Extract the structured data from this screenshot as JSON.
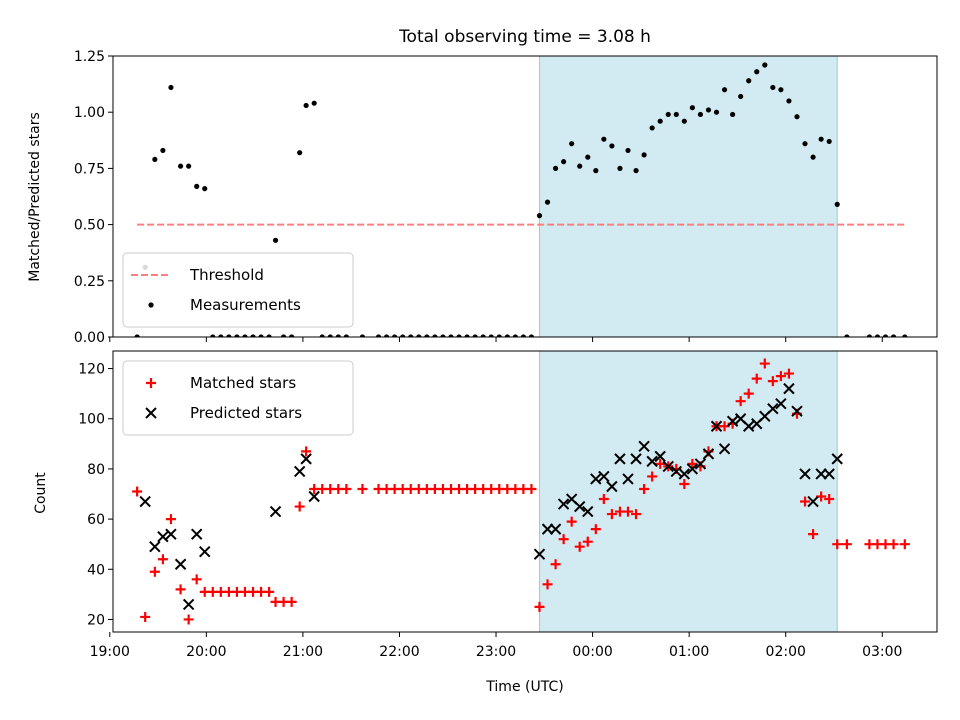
{
  "chart_data": [
    {
      "type": "scatter",
      "title": "Total observing time = 3.08 h",
      "xlabel": "",
      "ylabel": "Matched/Predicted stars",
      "xlim": [
        "19:02",
        "03:34"
      ],
      "ylim": [
        0,
        1.25
      ],
      "yticks": [
        "0.00",
        "0.25",
        "0.50",
        "0.75",
        "1.00",
        "1.25"
      ],
      "shaded_interval": [
        "23:27",
        "02:32"
      ],
      "shade_color": "#add8e6",
      "legend_position": "lower-left",
      "threshold": {
        "name": "Threshold",
        "value": 0.5,
        "x_range": [
          "19:17",
          "03:14"
        ],
        "color": "#ff7f7f",
        "style": "dashed"
      },
      "series": [
        {
          "name": "Measurements",
          "color": "#000000",
          "marker": "dot",
          "points": [
            [
              "19:17",
              0.0
            ],
            [
              "19:22",
              0.31
            ],
            [
              "19:28",
              0.79
            ],
            [
              "19:33",
              0.83
            ],
            [
              "19:38",
              1.11
            ],
            [
              "19:44",
              0.76
            ],
            [
              "19:49",
              0.76
            ],
            [
              "19:54",
              0.67
            ],
            [
              "19:59",
              0.66
            ],
            [
              "20:04",
              0.0
            ],
            [
              "20:09",
              0.0
            ],
            [
              "20:14",
              0.0
            ],
            [
              "20:19",
              0.0
            ],
            [
              "20:24",
              0.0
            ],
            [
              "20:29",
              0.0
            ],
            [
              "20:34",
              0.0
            ],
            [
              "20:39",
              0.0
            ],
            [
              "20:43",
              0.43
            ],
            [
              "20:48",
              0.0
            ],
            [
              "20:53",
              0.0
            ],
            [
              "20:58",
              0.82
            ],
            [
              "21:02",
              1.03
            ],
            [
              "21:07",
              1.04
            ],
            [
              "21:12",
              0.0
            ],
            [
              "21:17",
              0.0
            ],
            [
              "21:22",
              0.0
            ],
            [
              "21:27",
              0.0
            ],
            [
              "21:37",
              0.0
            ],
            [
              "21:47",
              0.0
            ],
            [
              "21:52",
              0.0
            ],
            [
              "21:57",
              0.0
            ],
            [
              "22:02",
              0.0
            ],
            [
              "22:07",
              0.0
            ],
            [
              "22:12",
              0.0
            ],
            [
              "22:17",
              0.0
            ],
            [
              "22:22",
              0.0
            ],
            [
              "22:27",
              0.0
            ],
            [
              "22:32",
              0.0
            ],
            [
              "22:37",
              0.0
            ],
            [
              "22:42",
              0.0
            ],
            [
              "22:47",
              0.0
            ],
            [
              "22:52",
              0.0
            ],
            [
              "22:57",
              0.0
            ],
            [
              "23:02",
              0.0
            ],
            [
              "23:07",
              0.0
            ],
            [
              "23:12",
              0.0
            ],
            [
              "23:17",
              0.0
            ],
            [
              "23:22",
              0.0
            ],
            [
              "23:27",
              0.54
            ],
            [
              "23:32",
              0.6
            ],
            [
              "23:37",
              0.75
            ],
            [
              "23:42",
              0.78
            ],
            [
              "23:47",
              0.86
            ],
            [
              "23:52",
              0.76
            ],
            [
              "23:57",
              0.8
            ],
            [
              "00:02",
              0.74
            ],
            [
              "00:07",
              0.88
            ],
            [
              "00:12",
              0.85
            ],
            [
              "00:17",
              0.75
            ],
            [
              "00:22",
              0.83
            ],
            [
              "00:27",
              0.74
            ],
            [
              "00:32",
              0.81
            ],
            [
              "00:37",
              0.93
            ],
            [
              "00:42",
              0.96
            ],
            [
              "00:47",
              0.99
            ],
            [
              "00:52",
              0.99
            ],
            [
              "00:57",
              0.96
            ],
            [
              "01:02",
              1.02
            ],
            [
              "01:07",
              0.99
            ],
            [
              "01:12",
              1.01
            ],
            [
              "01:17",
              1.0
            ],
            [
              "01:22",
              1.1
            ],
            [
              "01:27",
              0.99
            ],
            [
              "01:32",
              1.07
            ],
            [
              "01:37",
              1.14
            ],
            [
              "01:42",
              1.18
            ],
            [
              "01:47",
              1.21
            ],
            [
              "01:52",
              1.11
            ],
            [
              "01:57",
              1.1
            ],
            [
              "02:02",
              1.05
            ],
            [
              "02:07",
              0.98
            ],
            [
              "02:12",
              0.86
            ],
            [
              "02:17",
              0.8
            ],
            [
              "02:22",
              0.88
            ],
            [
              "02:27",
              0.87
            ],
            [
              "02:32",
              0.59
            ],
            [
              "02:38",
              0.0
            ],
            [
              "02:52",
              0.0
            ],
            [
              "02:57",
              0.0
            ],
            [
              "03:02",
              0.0
            ],
            [
              "03:07",
              0.0
            ],
            [
              "03:14",
              0.0
            ]
          ]
        }
      ]
    },
    {
      "type": "scatter",
      "title": "",
      "xlabel": "Time (UTC)",
      "ylabel": "Count",
      "xlim": [
        "19:02",
        "03:34"
      ],
      "ylim": [
        15,
        127
      ],
      "xticks": [
        "19:00",
        "20:00",
        "21:00",
        "22:00",
        "23:00",
        "00:00",
        "01:00",
        "02:00",
        "03:00"
      ],
      "yticks": [
        "20",
        "40",
        "60",
        "80",
        "100",
        "120"
      ],
      "shaded_interval": [
        "23:27",
        "02:32"
      ],
      "shade_color": "#add8e6",
      "legend_position": "upper-left",
      "series": [
        {
          "name": "Matched stars",
          "color": "#ff0000",
          "marker": "plus",
          "points": [
            [
              "19:17",
              71
            ],
            [
              "19:22",
              21
            ],
            [
              "19:28",
              39
            ],
            [
              "19:33",
              44
            ],
            [
              "19:38",
              60
            ],
            [
              "19:44",
              32
            ],
            [
              "19:49",
              20
            ],
            [
              "19:54",
              36
            ],
            [
              "19:59",
              31
            ],
            [
              "20:04",
              31
            ],
            [
              "20:09",
              31
            ],
            [
              "20:14",
              31
            ],
            [
              "20:19",
              31
            ],
            [
              "20:24",
              31
            ],
            [
              "20:29",
              31
            ],
            [
              "20:34",
              31
            ],
            [
              "20:39",
              31
            ],
            [
              "20:43",
              27
            ],
            [
              "20:48",
              27
            ],
            [
              "20:53",
              27
            ],
            [
              "20:58",
              65
            ],
            [
              "21:02",
              87
            ],
            [
              "21:07",
              72
            ],
            [
              "21:12",
              72
            ],
            [
              "21:17",
              72
            ],
            [
              "21:22",
              72
            ],
            [
              "21:27",
              72
            ],
            [
              "21:37",
              72
            ],
            [
              "21:47",
              72
            ],
            [
              "21:52",
              72
            ],
            [
              "21:57",
              72
            ],
            [
              "22:02",
              72
            ],
            [
              "22:07",
              72
            ],
            [
              "22:12",
              72
            ],
            [
              "22:17",
              72
            ],
            [
              "22:22",
              72
            ],
            [
              "22:27",
              72
            ],
            [
              "22:32",
              72
            ],
            [
              "22:37",
              72
            ],
            [
              "22:42",
              72
            ],
            [
              "22:47",
              72
            ],
            [
              "22:52",
              72
            ],
            [
              "22:57",
              72
            ],
            [
              "23:02",
              72
            ],
            [
              "23:07",
              72
            ],
            [
              "23:12",
              72
            ],
            [
              "23:17",
              72
            ],
            [
              "23:22",
              72
            ],
            [
              "23:27",
              25
            ],
            [
              "23:32",
              34
            ],
            [
              "23:37",
              42
            ],
            [
              "23:42",
              52
            ],
            [
              "23:47",
              59
            ],
            [
              "23:52",
              49
            ],
            [
              "23:57",
              51
            ],
            [
              "00:02",
              56
            ],
            [
              "00:07",
              68
            ],
            [
              "00:12",
              62
            ],
            [
              "00:17",
              63
            ],
            [
              "00:22",
              63
            ],
            [
              "00:27",
              62
            ],
            [
              "00:32",
              72
            ],
            [
              "00:37",
              77
            ],
            [
              "00:42",
              82
            ],
            [
              "00:47",
              81
            ],
            [
              "00:52",
              80
            ],
            [
              "00:57",
              74
            ],
            [
              "01:02",
              82
            ],
            [
              "01:07",
              81
            ],
            [
              "01:12",
              87
            ],
            [
              "01:17",
              97
            ],
            [
              "01:22",
              97
            ],
            [
              "01:27",
              98
            ],
            [
              "01:32",
              107
            ],
            [
              "01:37",
              110
            ],
            [
              "01:42",
              116
            ],
            [
              "01:47",
              122
            ],
            [
              "01:52",
              115
            ],
            [
              "01:57",
              117
            ],
            [
              "02:02",
              118
            ],
            [
              "02:07",
              102
            ],
            [
              "02:12",
              67
            ],
            [
              "02:17",
              54
            ],
            [
              "02:22",
              69
            ],
            [
              "02:27",
              68
            ],
            [
              "02:32",
              50
            ],
            [
              "02:38",
              50
            ],
            [
              "02:52",
              50
            ],
            [
              "02:57",
              50
            ],
            [
              "03:02",
              50
            ],
            [
              "03:07",
              50
            ],
            [
              "03:14",
              50
            ]
          ]
        },
        {
          "name": "Predicted stars",
          "color": "#000000",
          "marker": "x",
          "points": [
            [
              "19:22",
              67
            ],
            [
              "19:28",
              49
            ],
            [
              "19:33",
              53
            ],
            [
              "19:38",
              54
            ],
            [
              "19:44",
              42
            ],
            [
              "19:49",
              26
            ],
            [
              "19:54",
              54
            ],
            [
              "19:59",
              47
            ],
            [
              "20:43",
              63
            ],
            [
              "20:58",
              79
            ],
            [
              "21:02",
              84
            ],
            [
              "21:07",
              69
            ],
            [
              "23:27",
              46
            ],
            [
              "23:32",
              56
            ],
            [
              "23:37",
              56
            ],
            [
              "23:42",
              66
            ],
            [
              "23:47",
              68
            ],
            [
              "23:52",
              65
            ],
            [
              "23:57",
              63
            ],
            [
              "00:02",
              76
            ],
            [
              "00:07",
              77
            ],
            [
              "00:12",
              73
            ],
            [
              "00:17",
              84
            ],
            [
              "00:22",
              76
            ],
            [
              "00:27",
              84
            ],
            [
              "00:32",
              89
            ],
            [
              "00:37",
              83
            ],
            [
              "00:42",
              85
            ],
            [
              "00:47",
              81
            ],
            [
              "00:52",
              79
            ],
            [
              "00:57",
              78
            ],
            [
              "01:02",
              80
            ],
            [
              "01:07",
              82
            ],
            [
              "01:12",
              86
            ],
            [
              "01:17",
              97
            ],
            [
              "01:22",
              88
            ],
            [
              "01:27",
              99
            ],
            [
              "01:32",
              100
            ],
            [
              "01:37",
              97
            ],
            [
              "01:42",
              98
            ],
            [
              "01:47",
              101
            ],
            [
              "01:52",
              104
            ],
            [
              "01:57",
              106
            ],
            [
              "02:02",
              112
            ],
            [
              "02:07",
              103
            ],
            [
              "02:12",
              78
            ],
            [
              "02:17",
              67
            ],
            [
              "02:22",
              78
            ],
            [
              "02:27",
              78
            ],
            [
              "02:32",
              84
            ]
          ]
        }
      ]
    }
  ]
}
